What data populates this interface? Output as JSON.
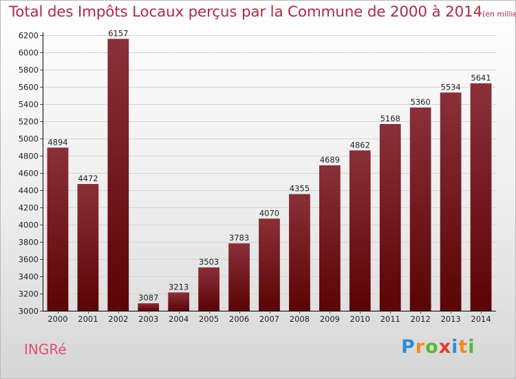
{
  "chart_data": {
    "type": "bar",
    "title": "Total des Impôts Locaux perçus par la Commune de 2000 à 2014",
    "subtitle": "(en milliers d'€)",
    "categories": [
      "2000",
      "2001",
      "2002",
      "2003",
      "2004",
      "2005",
      "2006",
      "2007",
      "2008",
      "2009",
      "2010",
      "2011",
      "2012",
      "2013",
      "2014"
    ],
    "values": [
      4894,
      4472,
      6157,
      3087,
      3213,
      3503,
      3783,
      4070,
      4355,
      4689,
      4862,
      5168,
      5360,
      5534,
      5641
    ],
    "ylim": [
      3000,
      6200
    ],
    "yticks": [
      3000,
      3200,
      3400,
      3600,
      3800,
      4000,
      4200,
      4400,
      4600,
      4800,
      5000,
      5200,
      5400,
      5600,
      5800,
      6000,
      6200
    ],
    "grid": true,
    "colors": {
      "bar_top": "#8a3038",
      "bar_bottom": "#5a0404",
      "grid": "#d4d4d4",
      "axis": "#000000"
    }
  },
  "footer": {
    "commune": "INGRé",
    "logo": {
      "text": "Proxiti",
      "letter_colors": [
        "#2e8bd8",
        "#f08a1c",
        "#56b830",
        "#e23a2a",
        "#2e8bd8",
        "#f08a1c",
        "#56b830"
      ]
    }
  }
}
